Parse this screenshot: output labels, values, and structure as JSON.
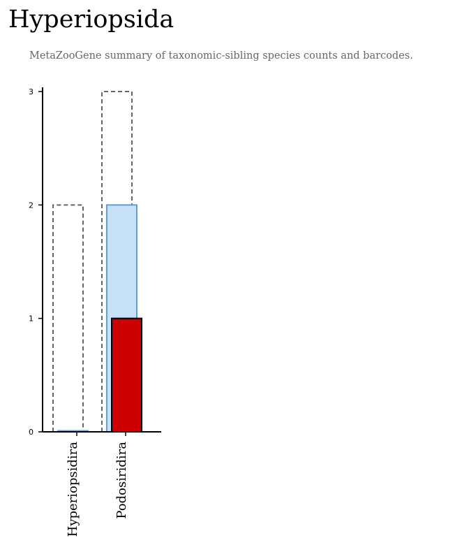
{
  "page": {
    "title": "Hyperiopsida",
    "subtitle": "MetaZooGene summary of taxonomic-sibling species counts and barcodes."
  },
  "chart_data": {
    "type": "bar",
    "categories": [
      "Hyperiopsidira",
      "Podosiridira"
    ],
    "series": [
      {
        "key": "outline",
        "style": "dashed-outline",
        "values": [
          2,
          3
        ]
      },
      {
        "key": "blue",
        "style": "filled",
        "values": [
          0,
          2
        ]
      },
      {
        "key": "red",
        "style": "filled",
        "values": [
          0,
          1
        ]
      }
    ],
    "yticks": [
      0,
      1,
      2,
      3
    ],
    "ylim": [
      0,
      3
    ],
    "grid": false,
    "legend": "none",
    "colors": {
      "outline": "#666666",
      "blue_fill": "#c6e1f8",
      "blue_stroke": "#6b9bcc",
      "red_fill": "#cc0000",
      "red_stroke": "#000000",
      "axis": "#000000"
    }
  }
}
